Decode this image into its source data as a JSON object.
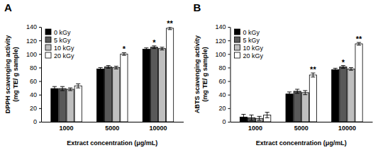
{
  "chart_data": [
    {
      "type": "bar",
      "title": "A",
      "y_label": "DPPH scavenging activity\n(mg TE/ g sample)",
      "x_label": "Extract concentration (μg/mL)",
      "categories": [
        "1000",
        "5000",
        "10000"
      ],
      "series": [
        {
          "name": "0 kGy",
          "color": "#000000",
          "values": [
            49,
            78,
            107
          ],
          "errors": [
            3,
            2,
            2
          ]
        },
        {
          "name": "5 kGy",
          "color": "#595959",
          "values": [
            49,
            81,
            110
          ],
          "errors": [
            3,
            2,
            2
          ]
        },
        {
          "name": "10 kGy",
          "color": "#bfbfbf",
          "values": [
            48,
            80,
            108
          ],
          "errors": [
            2,
            2,
            2
          ]
        },
        {
          "name": "20 kGy",
          "color": "#ffffff",
          "values": [
            53,
            100,
            138
          ],
          "errors": [
            3,
            2,
            2
          ]
        }
      ],
      "annotations": [
        {
          "text": "*",
          "category": "5000",
          "series": "20 kGy"
        },
        {
          "text": "*",
          "category": "10000",
          "series": "5 kGy"
        },
        {
          "text": "**",
          "category": "10000",
          "series": "20 kGy"
        }
      ],
      "ylim": [
        0,
        140
      ],
      "yticks": [
        0,
        20,
        40,
        60,
        80,
        100,
        120,
        140
      ],
      "grid": false,
      "legend": "upper left"
    },
    {
      "type": "bar",
      "title": "B",
      "y_label": "ABTS scavenging activity\n(mg TE/ g sample)",
      "x_label": "Extract concentration (μg/mL)",
      "categories": [
        "1000",
        "5000",
        "10000"
      ],
      "series": [
        {
          "name": "0 kGy",
          "color": "#000000",
          "values": [
            7,
            41,
            77
          ],
          "errors": [
            4,
            3,
            2
          ]
        },
        {
          "name": "5 kGy",
          "color": "#595959",
          "values": [
            6,
            45,
            81
          ],
          "errors": [
            4,
            3,
            2
          ]
        },
        {
          "name": "10 kGy",
          "color": "#bfbfbf",
          "values": [
            5,
            43,
            78
          ],
          "errors": [
            3,
            3,
            2
          ]
        },
        {
          "name": "20 kGy",
          "color": "#ffffff",
          "values": [
            10,
            69,
            115
          ],
          "errors": [
            4,
            3,
            2
          ]
        }
      ],
      "annotations": [
        {
          "text": "**",
          "category": "5000",
          "series": "20 kGy"
        },
        {
          "text": "*",
          "category": "10000",
          "series": "5 kGy"
        },
        {
          "text": "**",
          "category": "10000",
          "series": "20 kGy"
        }
      ],
      "ylim": [
        0,
        140
      ],
      "yticks": [
        0,
        20,
        40,
        60,
        80,
        100,
        120,
        140
      ],
      "grid": false,
      "legend": "upper left"
    }
  ]
}
